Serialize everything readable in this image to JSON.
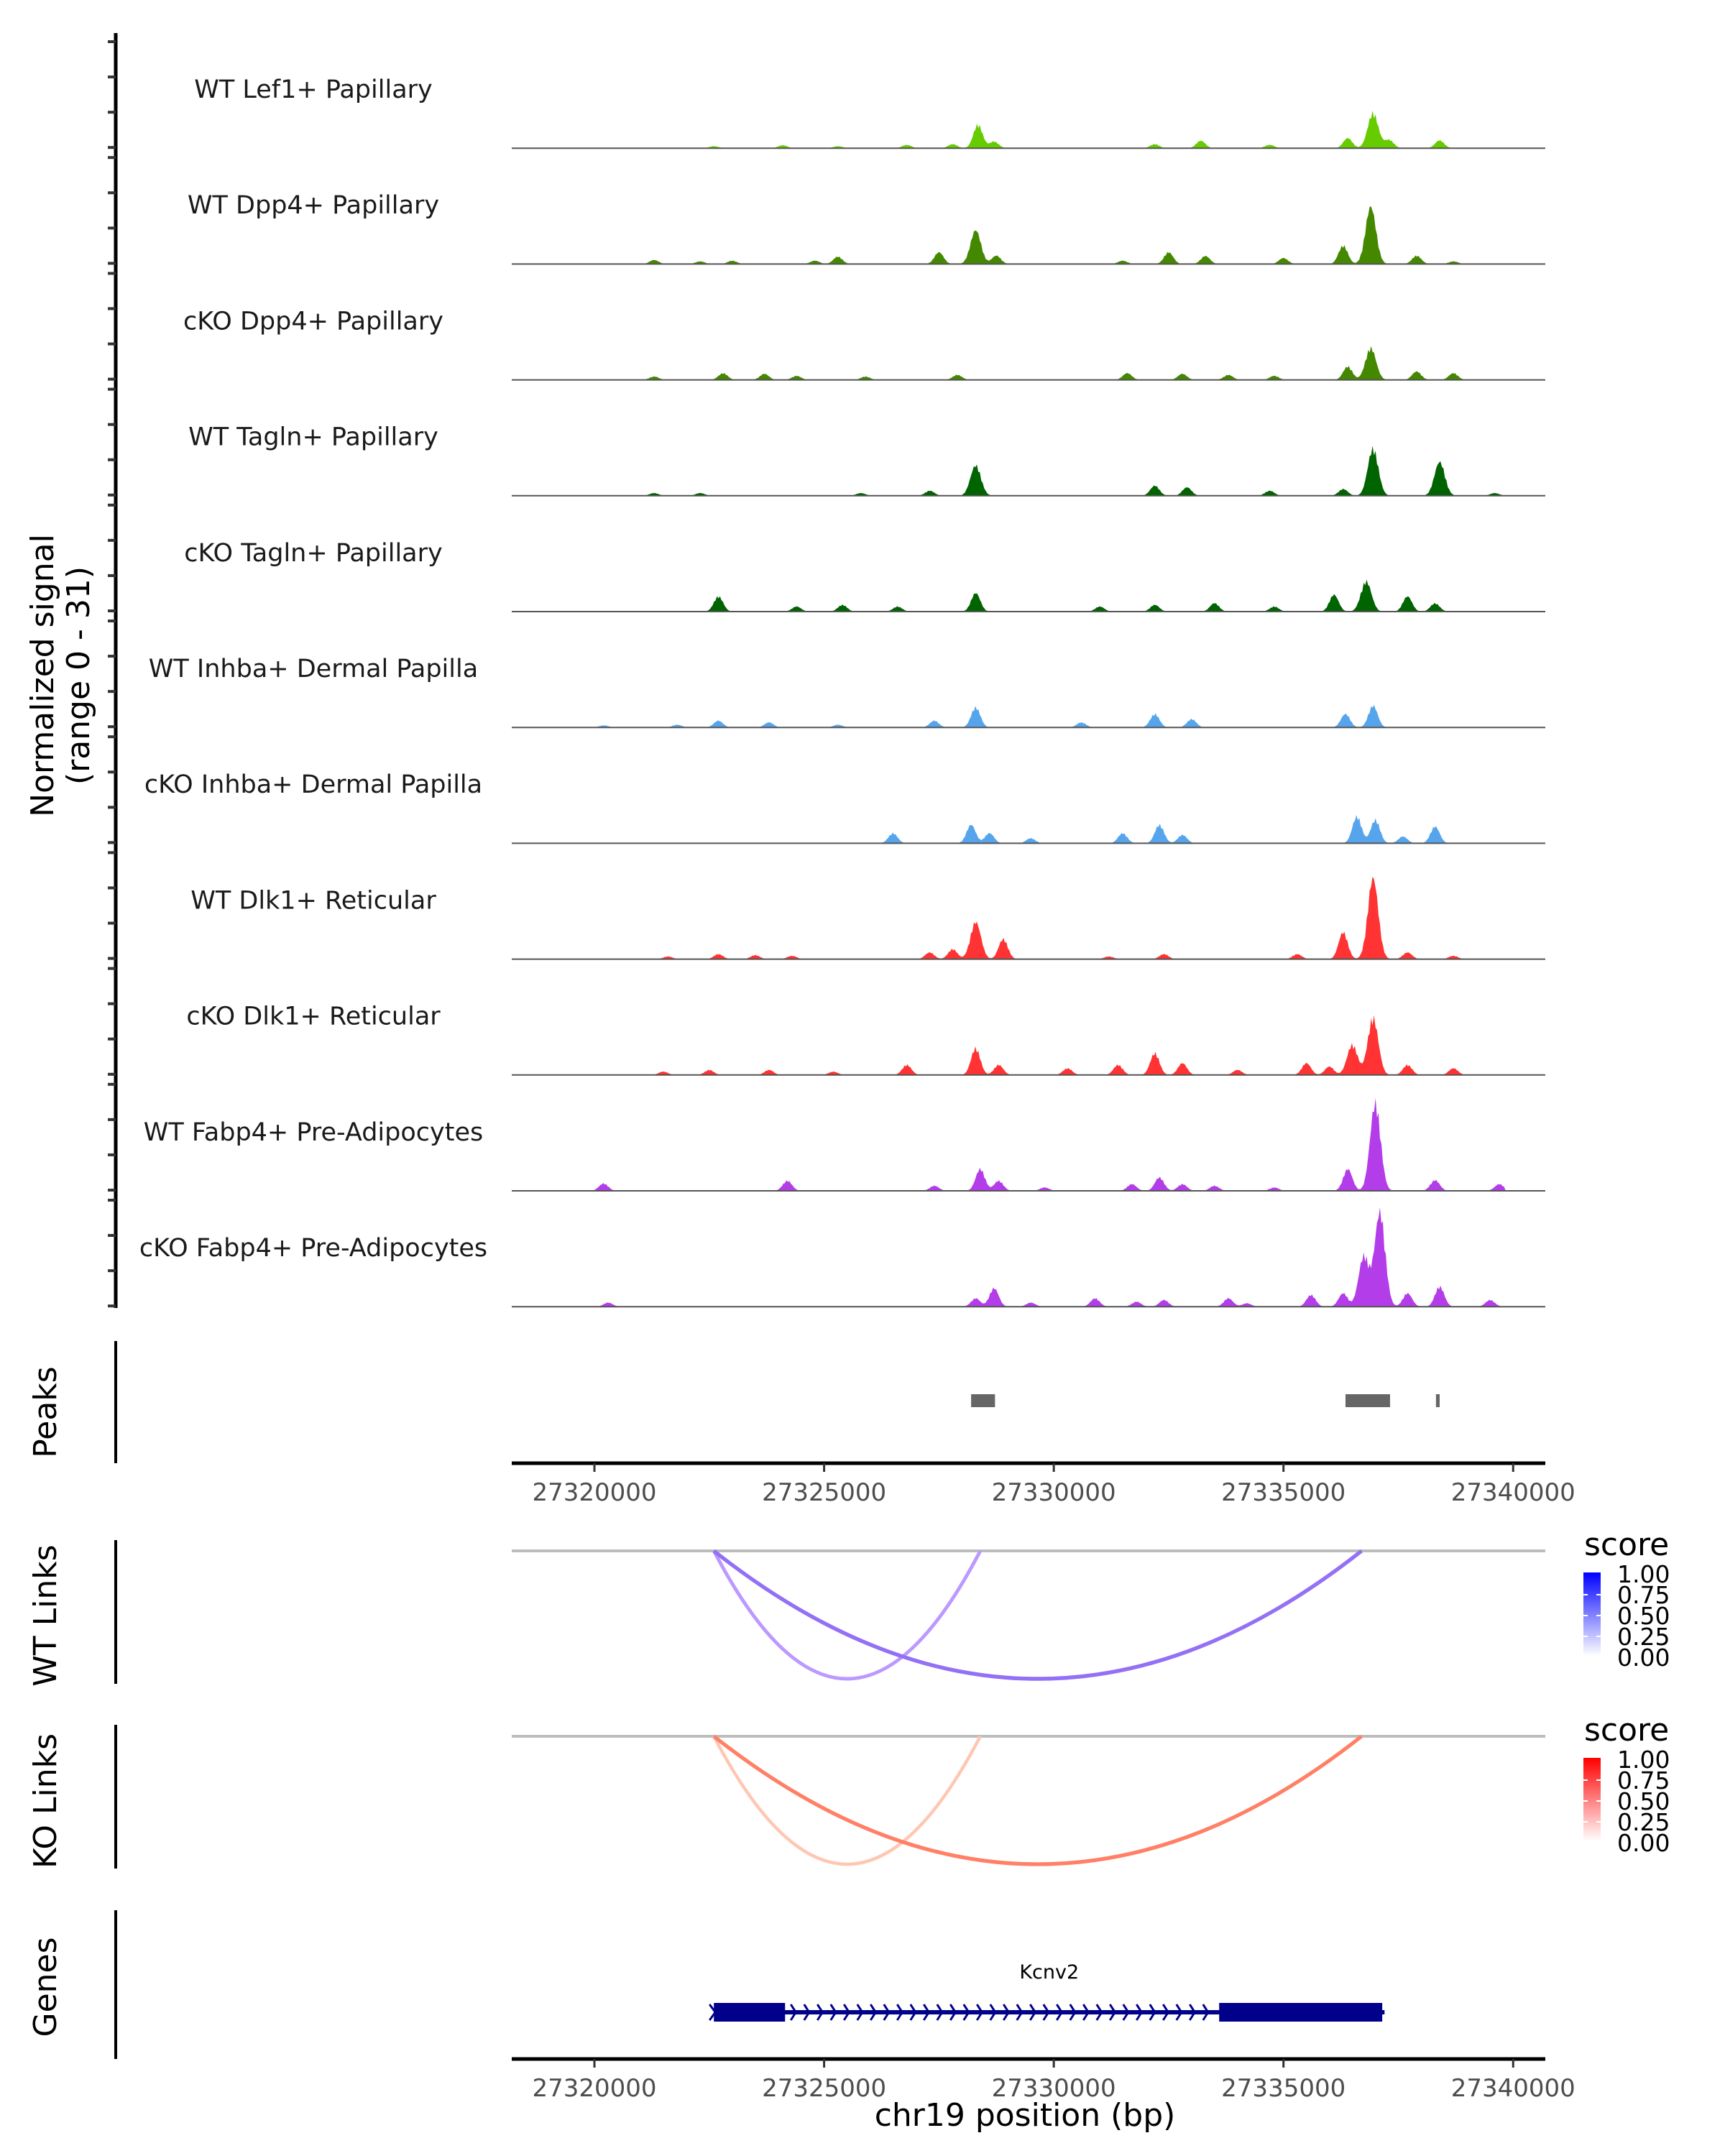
{
  "chart_data": {
    "type": "area",
    "title": "",
    "region": {
      "chromosome": "chr19",
      "start": 27320000,
      "end": 27340000
    },
    "xlabel": "chr19 position (bp)",
    "xticks": [
      27320000,
      27325000,
      27330000,
      27335000,
      27340000
    ],
    "xlim": [
      27318200,
      27340700
    ],
    "coverage": {
      "ylabel": "Normalized signal\n(range 0 - 31)",
      "ylabel_line1": "Normalized signal",
      "ylabel_line2": "(range 0 - 31)",
      "ylim": [
        0,
        31
      ],
      "tracks": [
        {
          "name": "WT Lef1+ Papillary",
          "color": "#66cc00",
          "peaks": [
            [
              27322600,
              0.6
            ],
            [
              27324100,
              0.9
            ],
            [
              27325300,
              0.6
            ],
            [
              27326800,
              1.0
            ],
            [
              27327800,
              1.2
            ],
            [
              27328350,
              7.0
            ],
            [
              27328700,
              2.0
            ],
            [
              27332200,
              1.2
            ],
            [
              27333200,
              2.2
            ],
            [
              27334700,
              1.0
            ],
            [
              27336400,
              3.0
            ],
            [
              27336950,
              10.5
            ],
            [
              27337300,
              2.5
            ],
            [
              27338400,
              2.3
            ]
          ]
        },
        {
          "name": "WT Dpp4+ Papillary",
          "color": "#448800",
          "peaks": [
            [
              27321300,
              1.2
            ],
            [
              27322300,
              0.8
            ],
            [
              27323000,
              1.0
            ],
            [
              27324800,
              1.0
            ],
            [
              27325300,
              2.2
            ],
            [
              27327500,
              3.5
            ],
            [
              27328300,
              10.0
            ],
            [
              27328750,
              2.5
            ],
            [
              27331500,
              1.0
            ],
            [
              27332500,
              3.5
            ],
            [
              27333300,
              2.4
            ],
            [
              27335000,
              1.8
            ],
            [
              27336300,
              5.5
            ],
            [
              27336900,
              17.0
            ],
            [
              27337900,
              2.5
            ],
            [
              27338700,
              0.8
            ]
          ]
        },
        {
          "name": "cKO Dpp4+ Papillary",
          "color": "#448800",
          "peaks": [
            [
              27321300,
              1.0
            ],
            [
              27322800,
              2.0
            ],
            [
              27323700,
              1.8
            ],
            [
              27324400,
              1.2
            ],
            [
              27325900,
              1.0
            ],
            [
              27327900,
              1.5
            ],
            [
              27331600,
              2.0
            ],
            [
              27332800,
              1.8
            ],
            [
              27333800,
              1.5
            ],
            [
              27334800,
              1.2
            ],
            [
              27336400,
              4.0
            ],
            [
              27336900,
              9.5
            ],
            [
              27337900,
              2.5
            ],
            [
              27338700,
              2.0
            ]
          ]
        },
        {
          "name": "WT Tagln+ Papillary",
          "color": "#006400",
          "peaks": [
            [
              27321300,
              0.8
            ],
            [
              27322300,
              0.8
            ],
            [
              27325800,
              0.8
            ],
            [
              27327300,
              1.5
            ],
            [
              27328300,
              9.0
            ],
            [
              27332200,
              3.0
            ],
            [
              27332900,
              2.5
            ],
            [
              27334700,
              1.5
            ],
            [
              27336300,
              2.0
            ],
            [
              27336950,
              14.0
            ],
            [
              27338400,
              10.0
            ],
            [
              27339600,
              0.8
            ]
          ]
        },
        {
          "name": "cKO Tagln+ Papillary",
          "color": "#006400",
          "peaks": [
            [
              27322700,
              4.5
            ],
            [
              27324400,
              1.5
            ],
            [
              27325400,
              2.0
            ],
            [
              27326600,
              1.5
            ],
            [
              27328300,
              5.5
            ],
            [
              27331000,
              1.5
            ],
            [
              27332200,
              2.0
            ],
            [
              27333500,
              2.5
            ],
            [
              27334800,
              1.5
            ],
            [
              27336100,
              5.0
            ],
            [
              27336800,
              9.0
            ],
            [
              27337700,
              4.5
            ],
            [
              27338300,
              2.5
            ]
          ]
        },
        {
          "name": "WT Inhba+ Dermal Papilla",
          "color": "#56a5ec",
          "peaks": [
            [
              27320200,
              0.6
            ],
            [
              27321800,
              0.8
            ],
            [
              27322700,
              2.0
            ],
            [
              27323800,
              1.5
            ],
            [
              27325300,
              0.8
            ],
            [
              27327400,
              2.0
            ],
            [
              27328300,
              6.0
            ],
            [
              27330600,
              1.5
            ],
            [
              27332200,
              4.0
            ],
            [
              27333000,
              2.5
            ],
            [
              27336350,
              4.0
            ],
            [
              27336950,
              6.5
            ]
          ]
        },
        {
          "name": "cKO Inhba+ Dermal Papilla",
          "color": "#56a5ec",
          "peaks": [
            [
              27326500,
              3.0
            ],
            [
              27328200,
              5.5
            ],
            [
              27328600,
              3.0
            ],
            [
              27329500,
              1.5
            ],
            [
              27331500,
              3.0
            ],
            [
              27332300,
              5.5
            ],
            [
              27332800,
              2.5
            ],
            [
              27336600,
              8.0
            ],
            [
              27337000,
              7.0
            ],
            [
              27337600,
              2.0
            ],
            [
              27338300,
              5.0
            ]
          ]
        },
        {
          "name": "WT Dlk1+ Reticular",
          "color": "#ff3333",
          "peaks": [
            [
              27321600,
              0.8
            ],
            [
              27322700,
              1.5
            ],
            [
              27323500,
              1.2
            ],
            [
              27324300,
              1.0
            ],
            [
              27327300,
              2.0
            ],
            [
              27327800,
              3.0
            ],
            [
              27328300,
              11.0
            ],
            [
              27328900,
              6.0
            ],
            [
              27331200,
              0.8
            ],
            [
              27332400,
              1.5
            ],
            [
              27335300,
              1.5
            ],
            [
              27336300,
              8.0
            ],
            [
              27336950,
              24.0
            ],
            [
              27337700,
              2.0
            ],
            [
              27338700,
              1.0
            ]
          ]
        },
        {
          "name": "cKO Dlk1+ Reticular",
          "color": "#ff3333",
          "peaks": [
            [
              27321500,
              1.0
            ],
            [
              27322500,
              1.5
            ],
            [
              27323800,
              1.5
            ],
            [
              27325200,
              1.0
            ],
            [
              27326800,
              3.0
            ],
            [
              27328300,
              8.0
            ],
            [
              27328800,
              3.0
            ],
            [
              27330300,
              2.0
            ],
            [
              27331400,
              3.0
            ],
            [
              27332200,
              6.5
            ],
            [
              27332800,
              3.5
            ],
            [
              27334000,
              1.5
            ],
            [
              27335500,
              3.5
            ],
            [
              27336000,
              2.5
            ],
            [
              27336500,
              9.0
            ],
            [
              27336950,
              17.0
            ],
            [
              27337700,
              3.0
            ],
            [
              27338700,
              2.0
            ]
          ]
        },
        {
          "name": "WT Fabp4+ Pre-Adipocytes",
          "color": "#b33de8",
          "peaks": [
            [
              27320200,
              2.2
            ],
            [
              27324200,
              3.0
            ],
            [
              27327400,
              1.5
            ],
            [
              27328400,
              6.5
            ],
            [
              27328800,
              3.0
            ],
            [
              27329800,
              1.0
            ],
            [
              27331700,
              2.0
            ],
            [
              27332300,
              4.0
            ],
            [
              27332800,
              2.0
            ],
            [
              27333500,
              1.5
            ],
            [
              27334800,
              1.0
            ],
            [
              27336400,
              6.5
            ],
            [
              27337000,
              26.0
            ],
            [
              27338300,
              3.2
            ],
            [
              27339700,
              2.0
            ]
          ]
        },
        {
          "name": "cKO Fabp4+ Pre-Adipocytes",
          "color": "#b33de8",
          "peaks": [
            [
              27320300,
              1.2
            ],
            [
              27328300,
              2.5
            ],
            [
              27328700,
              5.5
            ],
            [
              27329500,
              1.2
            ],
            [
              27330900,
              2.5
            ],
            [
              27331800,
              1.5
            ],
            [
              27332400,
              2.0
            ],
            [
              27333800,
              2.5
            ],
            [
              27334200,
              1.0
            ],
            [
              27335600,
              3.5
            ],
            [
              27336300,
              4.0
            ],
            [
              27336750,
              15.0
            ],
            [
              27337100,
              28.0
            ],
            [
              27337700,
              4.0
            ],
            [
              27338400,
              6.0
            ],
            [
              27339500,
              2.0
            ]
          ]
        }
      ]
    },
    "peaks_track": {
      "label": "Peaks",
      "color": "#666666",
      "regions": [
        [
          27328200,
          27328720
        ],
        [
          27336350,
          27337320
        ],
        [
          27338320,
          27338400
        ]
      ]
    },
    "links": [
      {
        "label": "WT Links",
        "color_low": "#ffffff",
        "color_high": "#0000ff",
        "legend_title": "score",
        "legend_ticks": [
          "1.00",
          "0.75",
          "0.50",
          "0.25",
          "0.00"
        ],
        "arcs": [
          {
            "start": 27322600,
            "end": 27328400,
            "score": 0.45,
            "color": "#bb99ff"
          },
          {
            "start": 27322600,
            "end": 27336700,
            "score": 0.65,
            "color": "#9370f5"
          }
        ]
      },
      {
        "label": "KO Links",
        "color_low": "#ffffff",
        "color_high": "#ff0000",
        "legend_title": "score",
        "legend_ticks": [
          "1.00",
          "0.75",
          "0.50",
          "0.25",
          "0.00"
        ],
        "arcs": [
          {
            "start": 27322600,
            "end": 27328400,
            "score": 0.3,
            "color": "#ffc7b3"
          },
          {
            "start": 27322600,
            "end": 27336700,
            "score": 0.6,
            "color": "#ff8066"
          }
        ]
      }
    ],
    "genes": {
      "label": "Genes",
      "color": "#00008b",
      "items": [
        {
          "name": "Kcnv2",
          "strand": "+",
          "start": 27322600,
          "end": 27337200,
          "exons": [
            [
              27322600,
              27324150
            ],
            [
              27333600,
              27337150
            ]
          ]
        }
      ]
    }
  }
}
